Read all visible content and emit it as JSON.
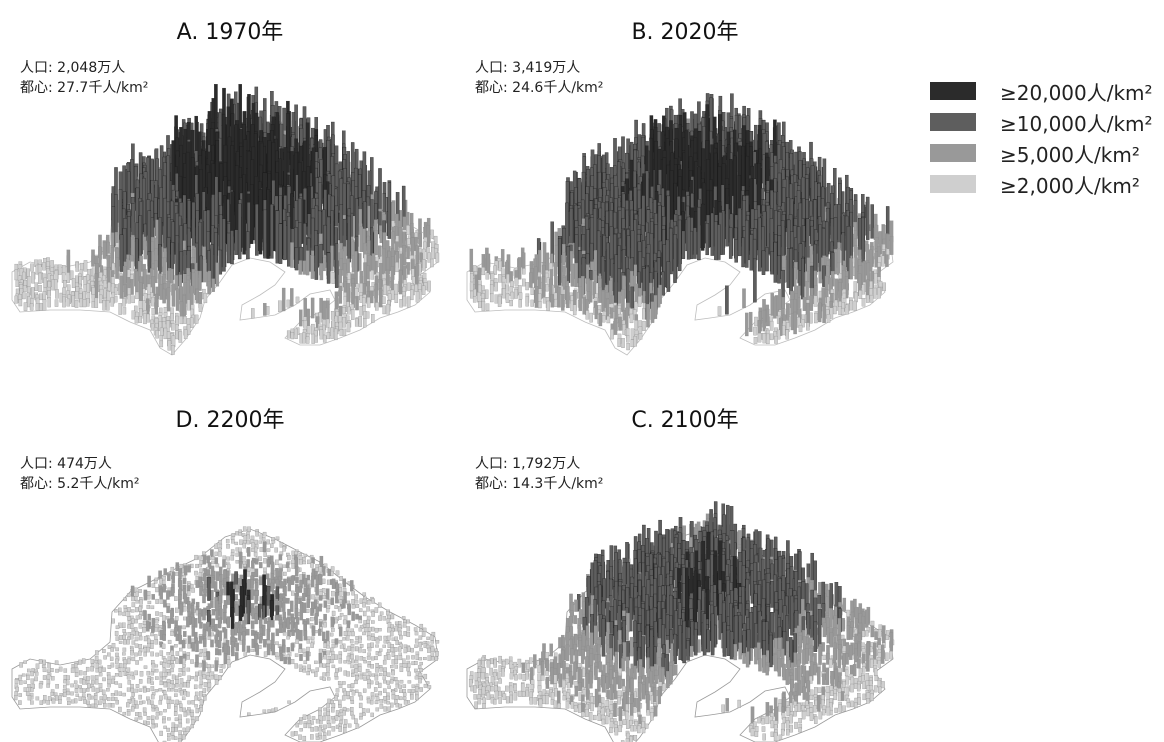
{
  "panels": [
    {
      "id": "A",
      "title": "A. 1970年",
      "population": "人口: 2,048万人",
      "center": "都心: 27.7千人/km²",
      "density_levels": [
        0.22,
        0.3,
        0.22,
        0.26
      ]
    },
    {
      "id": "B",
      "title": "B. 2020年",
      "population": "人口: 3,419万人",
      "center": "都心: 24.6千人/km²",
      "density_levels": [
        0.2,
        0.45,
        0.2,
        0.15
      ]
    },
    {
      "id": "D",
      "title": "D. 2200年",
      "population": "人口: 474万人",
      "center": "都心: 5.2千人/km²",
      "density_levels": [
        0,
        0.04,
        0.3,
        0.66
      ]
    },
    {
      "id": "C",
      "title": "C. 2100年",
      "population": "人口: 1,792万人",
      "center": "都心: 14.3千人/km²",
      "density_levels": [
        0.04,
        0.4,
        0.3,
        0.26
      ]
    }
  ],
  "legend": [
    {
      "label": "≥20,000人/km²",
      "color": "#2b2b2b"
    },
    {
      "label": "≥10,000人/km²",
      "color": "#5e5e5e"
    },
    {
      "label": "≥5,000人/km²",
      "color": "#999999"
    },
    {
      "label": "≥2,000人/km²",
      "color": "#cfcfcf"
    }
  ]
}
